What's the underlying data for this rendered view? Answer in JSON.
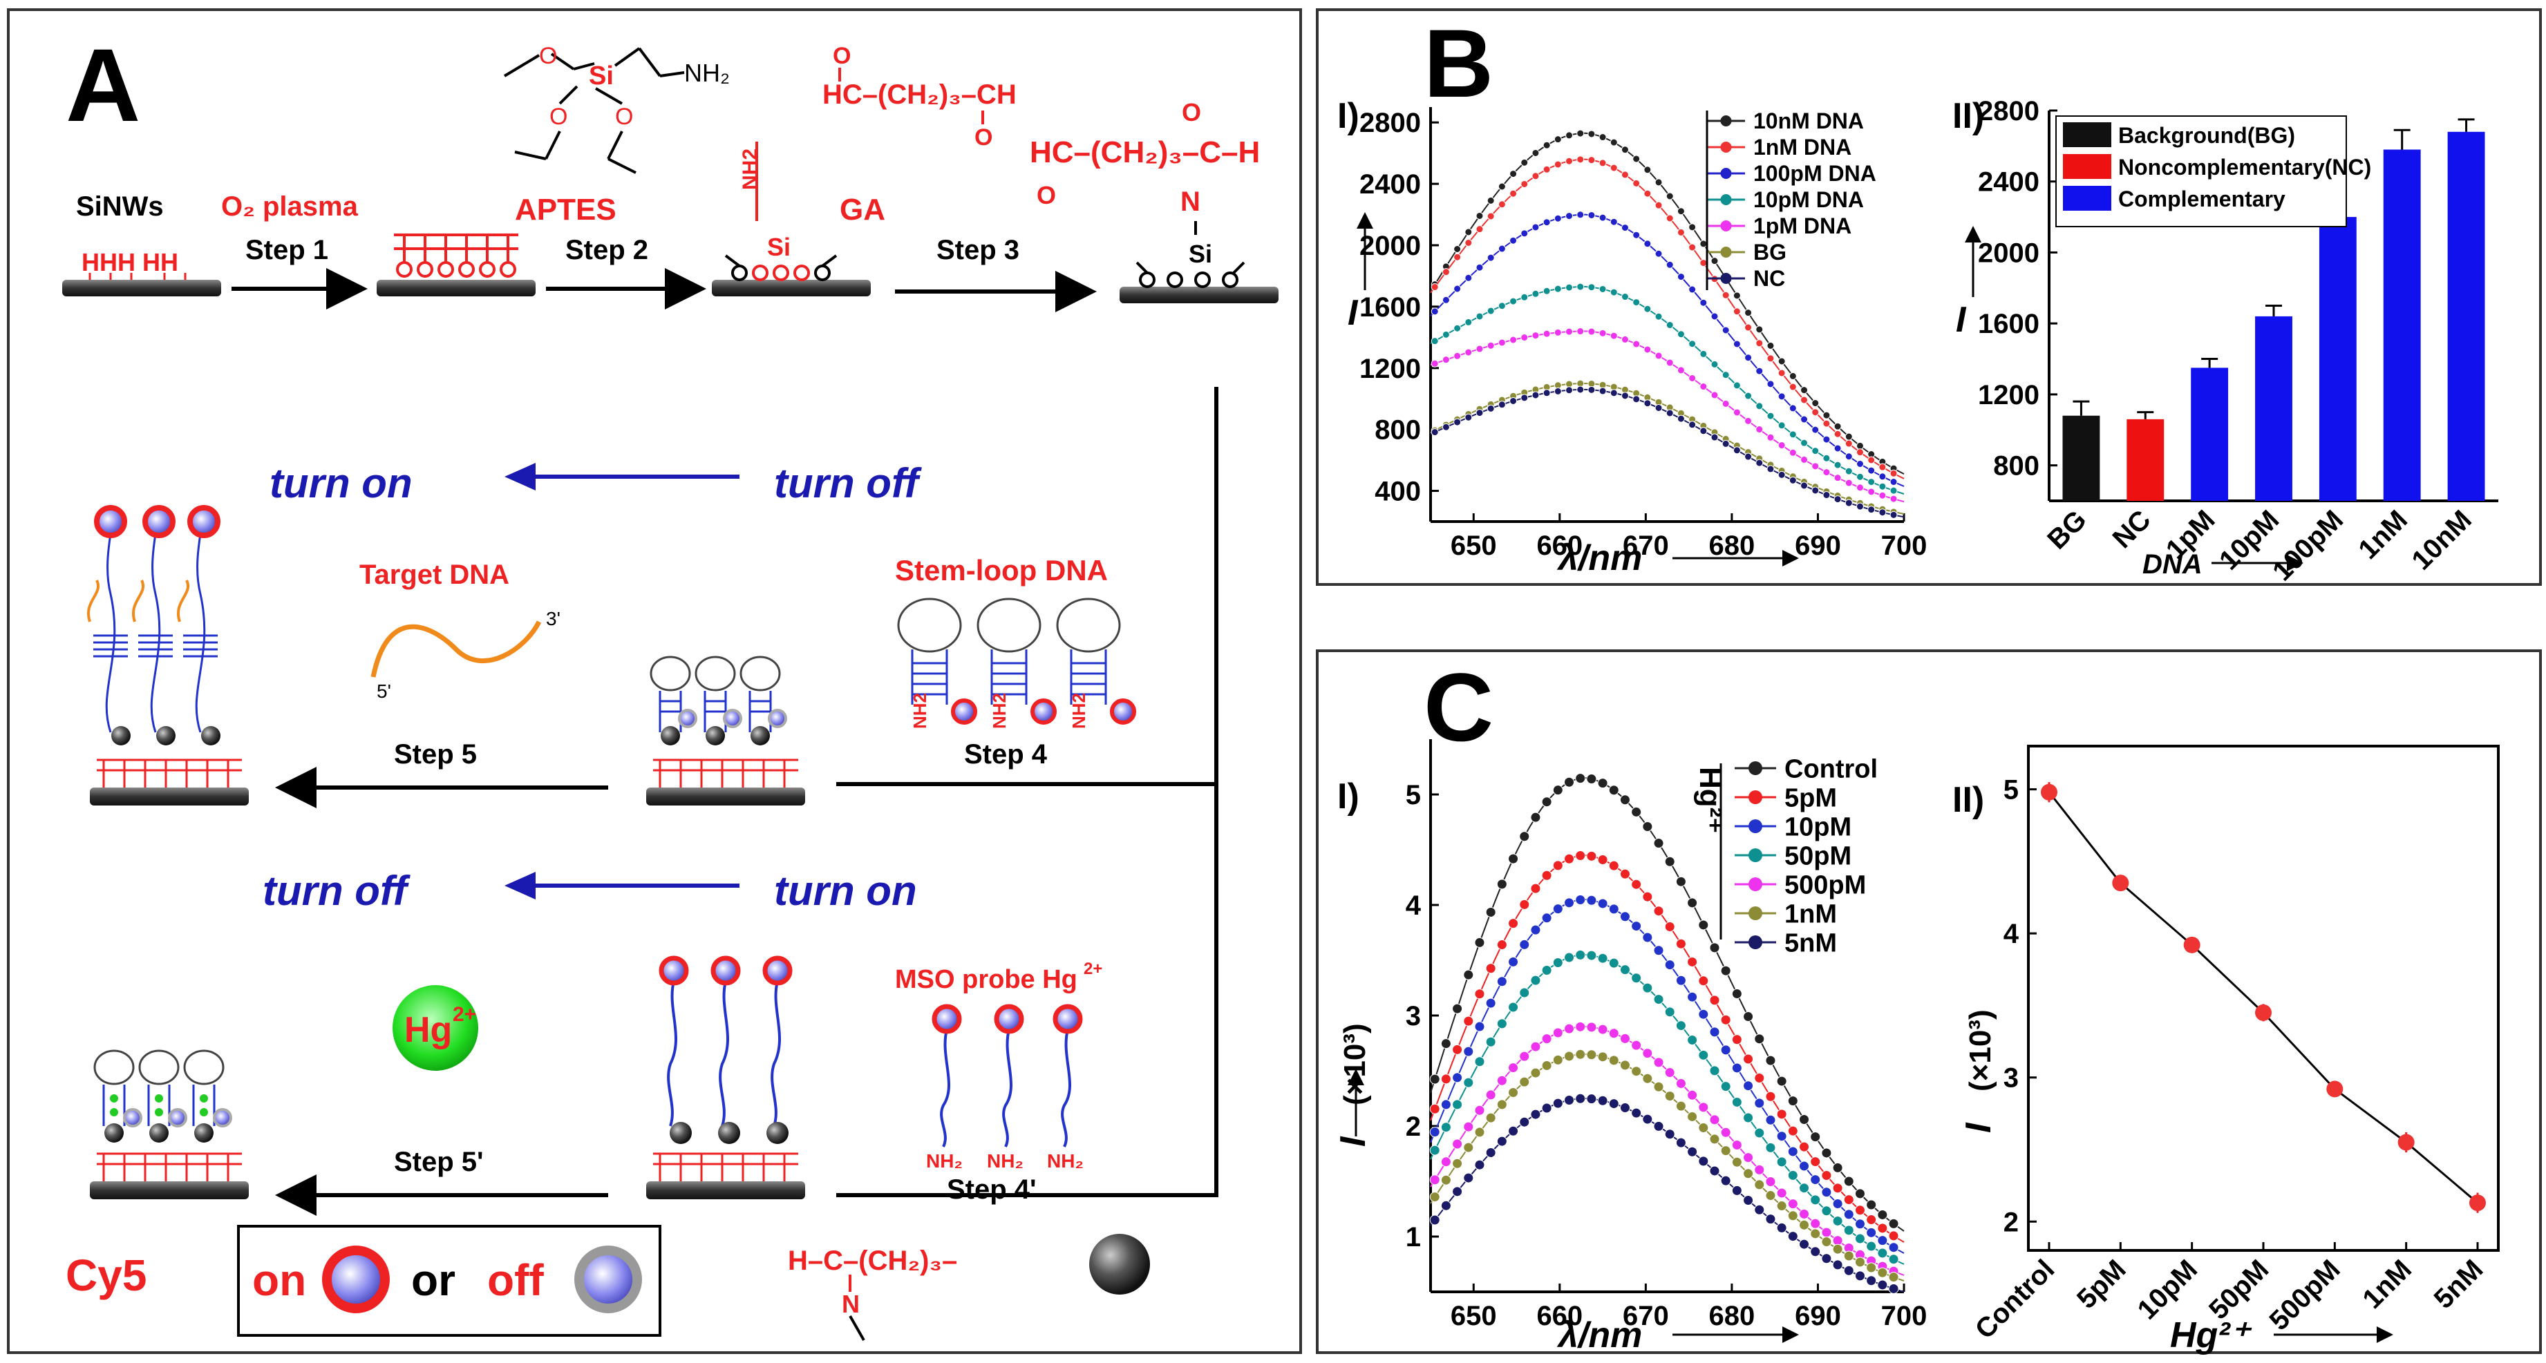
{
  "panelA": {
    "letter": "A",
    "sinws": "SiNWs",
    "o2plasma": "O₂ plasma",
    "aptes": "APTES",
    "ga": "GA",
    "ga_formula": "HC–(CH₂)₃–CH",
    "ga_formula2": "HC–(CH₂)₃–C–H",
    "nh2": "NH₂",
    "si": "Si",
    "n": "N",
    "hhh": "HHH HH",
    "step1": "Step 1",
    "step2": "Step 2",
    "step3": "Step 3",
    "step4": "Step 4",
    "step5": "Step 5",
    "step4p": "Step 4'",
    "step5p": "Step 5'",
    "turn_on": "turn on",
    "turn_off": "turn off",
    "target_dna": "Target DNA",
    "stem_loop": "Stem-loop DNA",
    "five_prime": "5'",
    "three_prime": "3'",
    "mso_probe": "MSO probe Hg",
    "hg": "Hg",
    "hg_sup": "2+",
    "linker": "H–C–(CH₂)₃–",
    "cy5": "Cy5",
    "on": "on",
    "or": "or",
    "off": "off"
  },
  "panelB": {
    "letter": "B",
    "sub1": "I)",
    "sub2": "II)",
    "ylabel": "I",
    "xlabel": "λ/nm",
    "xlabel2": "DNA",
    "legend1": [
      "10nM DNA",
      "1nM DNA",
      "100pM DNA",
      "10pM DNA",
      "1pM DNA",
      "BG",
      "NC"
    ],
    "legend2": [
      "Background(BG)",
      "Noncomplementary(NC)",
      "Complementary"
    ]
  },
  "panelC": {
    "letter": "C",
    "sub1": "I)",
    "sub2": "II)",
    "ylabel": "I",
    "yunit": "(×10³)",
    "xlabel": "λ/nm",
    "xlabel2": "Hg²⁺",
    "legend_title": "Hg²⁺",
    "legend1": [
      "Control",
      "5pM",
      "10pM",
      "50pM",
      "500pM",
      "1nM",
      "5nM"
    ]
  },
  "chart_data": [
    {
      "type": "line",
      "xlim": [
        645,
        700
      ],
      "ylim": [
        200,
        2900
      ],
      "xticks": [
        650,
        660,
        670,
        680,
        690,
        700
      ],
      "yticks": [
        400,
        800,
        1200,
        1600,
        2000,
        2400,
        2800
      ],
      "series": [
        {
          "name": "10nM DNA",
          "color": "#222222",
          "peak": 2730,
          "start": 1700,
          "end": 510
        },
        {
          "name": "1nM DNA",
          "color": "#ee3333",
          "peak": 2560,
          "start": 1690,
          "end": 480
        },
        {
          "name": "100pM DNA",
          "color": "#2222cc",
          "peak": 2200,
          "start": 1540,
          "end": 430
        },
        {
          "name": "10pM DNA",
          "color": "#0e9090",
          "peak": 1730,
          "start": 1360,
          "end": 380
        },
        {
          "name": "1pM DNA",
          "color": "#ee33ee",
          "peak": 1440,
          "start": 1220,
          "end": 330
        },
        {
          "name": "BG",
          "color": "#8c8c36",
          "peak": 1100,
          "start": 780,
          "end": 250
        },
        {
          "name": "NC",
          "color": "#1a1a66",
          "peak": 1060,
          "start": 770,
          "end": 230
        }
      ]
    },
    {
      "type": "bar",
      "categories": [
        "BG",
        "NC",
        "1pM",
        "10pM",
        "100pM",
        "1nM",
        "10nM"
      ],
      "values": [
        1080,
        1060,
        1350,
        1640,
        2200,
        2580,
        2680
      ],
      "errors": [
        80,
        40,
        50,
        60,
        70,
        110,
        70
      ],
      "colors": [
        "#111111",
        "#ee1111",
        "#1111ee",
        "#1111ee",
        "#1111ee",
        "#1111ee",
        "#1111ee"
      ],
      "ylim": [
        600,
        2800
      ],
      "yticks": [
        800,
        1200,
        1600,
        2000,
        2400,
        2800
      ]
    },
    {
      "type": "line",
      "xlim": [
        645,
        700
      ],
      "ylim": [
        0.5,
        5.5
      ],
      "xticks": [
        650,
        660,
        670,
        680,
        690,
        700
      ],
      "yticks": [
        1,
        2,
        3,
        4,
        5
      ],
      "series": [
        {
          "name": "Control",
          "color": "#222222",
          "peak": 5.15,
          "start": 2.3,
          "end": 1.05
        },
        {
          "name": "5pM",
          "color": "#ee2222",
          "peak": 4.45,
          "start": 2.05,
          "end": 0.95
        },
        {
          "name": "10pM",
          "color": "#2233cc",
          "peak": 4.05,
          "start": 1.85,
          "end": 0.85
        },
        {
          "name": "50pM",
          "color": "#0e9090",
          "peak": 3.55,
          "start": 1.7,
          "end": 0.75
        },
        {
          "name": "500pM",
          "color": "#ee33ee",
          "peak": 2.9,
          "start": 1.45,
          "end": 0.65
        },
        {
          "name": "1nM",
          "color": "#8c8c36",
          "peak": 2.65,
          "start": 1.3,
          "end": 0.6
        },
        {
          "name": "5nM",
          "color": "#1a1a66",
          "peak": 2.25,
          "start": 1.1,
          "end": 0.5
        }
      ]
    },
    {
      "type": "line",
      "categories": [
        "Control",
        "5pM",
        "10pM",
        "50pM",
        "500pM",
        "1nM",
        "5nM"
      ],
      "values": [
        4.98,
        4.35,
        3.92,
        3.45,
        2.92,
        2.55,
        2.13
      ],
      "errors": [
        0.07,
        0.05,
        0.03,
        0.06,
        0.03,
        0.07,
        0.07
      ],
      "ylim": [
        1.8,
        5.3
      ],
      "yticks": [
        2,
        3,
        4,
        5
      ]
    }
  ]
}
